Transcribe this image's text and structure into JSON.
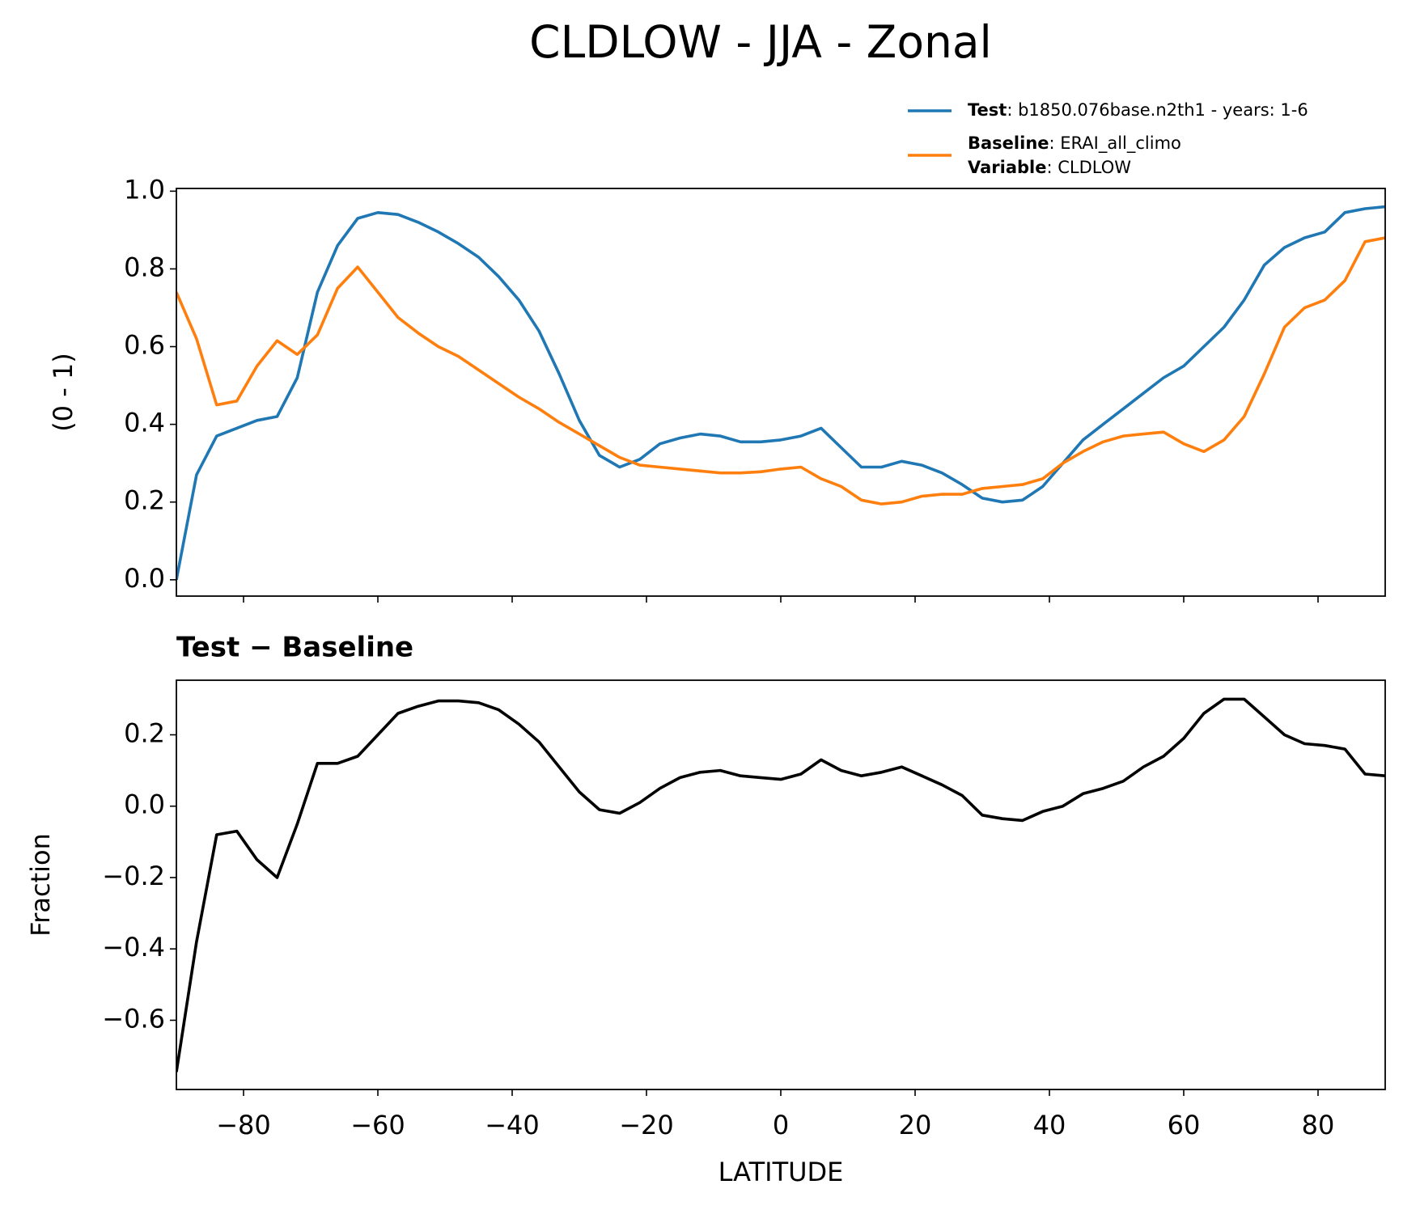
{
  "chart_data": [
    {
      "type": "line",
      "title": "CLDLOW - JJA - Zonal",
      "ylabel": "(0 - 1)",
      "x": [
        -90,
        -87,
        -84,
        -81,
        -78,
        -75,
        -72,
        -69,
        -66,
        -63,
        -60,
        -57,
        -54,
        -51,
        -48,
        -45,
        -42,
        -39,
        -36,
        -33,
        -30,
        -27,
        -24,
        -21,
        -18,
        -15,
        -12,
        -9,
        -6,
        -3,
        0,
        3,
        6,
        9,
        12,
        15,
        18,
        21,
        24,
        27,
        30,
        33,
        36,
        39,
        42,
        45,
        48,
        51,
        54,
        57,
        60,
        63,
        66,
        69,
        72,
        75,
        78,
        81,
        84,
        87,
        90
      ],
      "series": [
        {
          "name": "Test",
          "info": ": b1850.076base.n2th1 - years: 1-6",
          "color": "#1f77b4",
          "values": [
            0.0,
            0.27,
            0.37,
            0.39,
            0.41,
            0.42,
            0.52,
            0.74,
            0.86,
            0.93,
            0.945,
            0.94,
            0.92,
            0.895,
            0.865,
            0.83,
            0.78,
            0.72,
            0.64,
            0.53,
            0.41,
            0.32,
            0.29,
            0.31,
            0.35,
            0.365,
            0.375,
            0.37,
            0.355,
            0.355,
            0.36,
            0.37,
            0.39,
            0.34,
            0.29,
            0.29,
            0.305,
            0.295,
            0.275,
            0.245,
            0.21,
            0.2,
            0.205,
            0.24,
            0.3,
            0.36,
            0.4,
            0.44,
            0.48,
            0.52,
            0.55,
            0.6,
            0.65,
            0.72,
            0.81,
            0.855,
            0.88,
            0.895,
            0.945,
            0.955,
            0.96
          ]
        },
        {
          "name": "Baseline",
          "info": ": ERAI_all_climo",
          "color": "#ff7f0e",
          "values": [
            0.74,
            0.62,
            0.45,
            0.46,
            0.55,
            0.615,
            0.58,
            0.63,
            0.75,
            0.805,
            0.74,
            0.675,
            0.635,
            0.6,
            0.575,
            0.54,
            0.505,
            0.47,
            0.44,
            0.405,
            0.375,
            0.345,
            0.315,
            0.295,
            0.29,
            0.285,
            0.28,
            0.275,
            0.275,
            0.278,
            0.285,
            0.29,
            0.26,
            0.24,
            0.205,
            0.195,
            0.2,
            0.215,
            0.22,
            0.22,
            0.235,
            0.24,
            0.245,
            0.26,
            0.3,
            0.33,
            0.355,
            0.37,
            0.375,
            0.38,
            0.35,
            0.33,
            0.36,
            0.42,
            0.53,
            0.65,
            0.7,
            0.72,
            0.77,
            0.87,
            0.88
          ]
        }
      ],
      "legend_extra": {
        "name": "Variable",
        "info": ": CLDLOW"
      },
      "xlim": [
        -90,
        90
      ],
      "xticks": [
        -80,
        -60,
        -40,
        -20,
        0,
        20,
        40,
        60,
        80
      ],
      "ylim": [
        -0.042,
        1.007
      ],
      "yticks": [
        {
          "value": 0,
          "label": "0.0"
        },
        {
          "value": 0.2,
          "label": "0.2"
        },
        {
          "value": 0.4,
          "label": "0.4"
        },
        {
          "value": 0.6,
          "label": "0.6"
        },
        {
          "value": 0.8,
          "label": "0.8"
        },
        {
          "value": 1,
          "label": "1.0"
        }
      ]
    },
    {
      "type": "line",
      "title": "Test − Baseline",
      "ylabel": "Fraction",
      "xlabel": "LATITUDE",
      "x": [
        -90,
        -87,
        -84,
        -81,
        -78,
        -75,
        -72,
        -69,
        -66,
        -63,
        -60,
        -57,
        -54,
        -51,
        -48,
        -45,
        -42,
        -39,
        -36,
        -33,
        -30,
        -27,
        -24,
        -21,
        -18,
        -15,
        -12,
        -9,
        -6,
        -3,
        0,
        3,
        6,
        9,
        12,
        15,
        18,
        21,
        24,
        27,
        30,
        33,
        36,
        39,
        42,
        45,
        48,
        51,
        54,
        57,
        60,
        63,
        66,
        69,
        72,
        75,
        78,
        81,
        84,
        87,
        90
      ],
      "series": [
        {
          "color": "#000000",
          "values": [
            -0.745,
            -0.38,
            -0.08,
            -0.07,
            -0.15,
            -0.2,
            -0.05,
            0.12,
            0.12,
            0.14,
            0.2,
            0.26,
            0.28,
            0.295,
            0.295,
            0.29,
            0.27,
            0.23,
            0.18,
            0.11,
            0.04,
            -0.01,
            -0.02,
            0.01,
            0.05,
            0.08,
            0.095,
            0.1,
            0.085,
            0.08,
            0.075,
            0.09,
            0.13,
            0.1,
            0.085,
            0.095,
            0.11,
            0.085,
            0.06,
            0.03,
            -0.025,
            -0.035,
            -0.04,
            -0.015,
            0.0,
            0.035,
            0.05,
            0.07,
            0.11,
            0.14,
            0.19,
            0.26,
            0.3,
            0.3,
            0.25,
            0.2,
            0.175,
            0.17,
            0.16,
            0.09,
            0.085
          ]
        }
      ],
      "xlim": [
        -90,
        90
      ],
      "xticks": [
        {
          "value": -80,
          "label": "−80"
        },
        {
          "value": -60,
          "label": "−60"
        },
        {
          "value": -40,
          "label": "−40"
        },
        {
          "value": -20,
          "label": "−20"
        },
        0,
        20,
        40,
        60,
        80
      ],
      "ylim": [
        -0.794,
        0.353
      ],
      "yticks": [
        {
          "value": -0.6,
          "label": "−0.6"
        },
        {
          "value": -0.4,
          "label": "−0.4"
        },
        {
          "value": -0.2,
          "label": "−0.2"
        },
        {
          "value": 0,
          "label": "0.0"
        },
        {
          "value": 0.2,
          "label": "0.2"
        }
      ]
    }
  ]
}
